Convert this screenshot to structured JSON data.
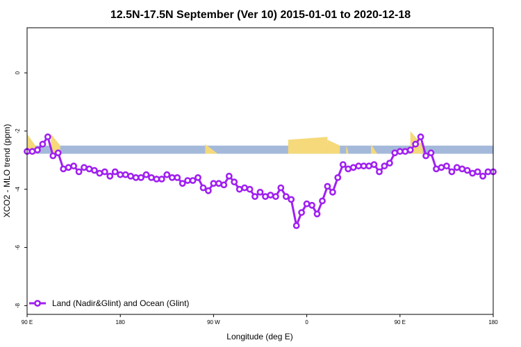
{
  "chart_data": {
    "type": "line",
    "title": "12.5N-17.5N September (Ver 10)   2015-01-01 to 2020-12-18",
    "xlabel": "Longitude (deg E)",
    "ylabel": "XCO2 - MLO trend (ppm)",
    "x_ticks": [
      {
        "value": 90,
        "label": "90 E"
      },
      {
        "value": 180,
        "label": "180"
      },
      {
        "value": 270,
        "label": "90 W"
      },
      {
        "value": 360,
        "label": "0"
      },
      {
        "value": 450,
        "label": "90 E"
      },
      {
        "value": 540,
        "label": "180"
      }
    ],
    "y_ticks": [
      {
        "value": 0,
        "label": "0"
      },
      {
        "value": -2,
        "label": "-2"
      },
      {
        "value": -4,
        "label": "-4"
      },
      {
        "value": -6,
        "label": "-6"
      },
      {
        "value": -8,
        "label": "-8"
      }
    ],
    "xlim": [
      90,
      540
    ],
    "ylim": [
      -8.3,
      1.55
    ],
    "grid": false,
    "band": {
      "y_top": -2.5,
      "y_bottom": -2.78,
      "ocean_color": "#a4b9da",
      "land_color": "#f5d97a",
      "land_segments": [
        {
          "x": [
            90,
            98
          ],
          "top": [
            -2.1,
            -2.5
          ],
          "bottom": [
            -2.78,
            -2.78
          ]
        },
        {
          "x": [
            113,
            122
          ],
          "top": [
            -2.1,
            -2.5
          ],
          "bottom": [
            -2.78,
            -2.78
          ]
        },
        {
          "x": [
            262,
            274
          ],
          "top": [
            -2.45,
            -2.78
          ],
          "bottom": [
            -2.78,
            -2.78
          ]
        },
        {
          "x": [
            342,
            380
          ],
          "top": [
            -2.3,
            -2.2
          ],
          "bottom": [
            -2.78,
            -2.78
          ]
        },
        {
          "x": [
            380,
            392
          ],
          "top": [
            -2.3,
            -2.5
          ],
          "bottom": [
            -2.78,
            -2.78
          ]
        },
        {
          "x": [
            398,
            400
          ],
          "top": [
            -2.5,
            -2.7
          ],
          "bottom": [
            -2.78,
            -2.78
          ]
        },
        {
          "x": [
            422,
            428
          ],
          "top": [
            -2.45,
            -2.78
          ],
          "bottom": [
            -2.78,
            -2.78
          ]
        },
        {
          "x": [
            460,
            472
          ],
          "top": [
            -2.0,
            -2.5
          ],
          "bottom": [
            -2.78,
            -2.78
          ]
        }
      ]
    },
    "series": [
      {
        "name": "Land (Nadir&Glint) and Ocean (Glint)",
        "color": "#a020f0",
        "x": [
          90,
          95,
          100,
          105,
          110,
          115,
          120,
          125,
          130,
          135,
          140,
          145,
          150,
          155,
          160,
          165,
          170,
          175,
          180,
          185,
          190,
          195,
          200,
          205,
          210,
          215,
          220,
          225,
          230,
          235,
          240,
          245,
          250,
          255,
          260,
          265,
          270,
          275,
          280,
          285,
          290,
          295,
          300,
          305,
          310,
          315,
          320,
          325,
          330,
          335,
          340,
          345,
          350,
          355,
          360,
          365,
          370,
          375,
          380,
          385,
          390,
          395,
          400,
          405,
          410,
          415,
          420,
          425,
          430,
          435,
          440,
          445,
          450,
          455,
          460,
          465,
          470,
          475,
          480,
          485,
          490,
          495,
          500,
          505,
          510,
          515,
          520,
          525,
          530,
          535,
          540
        ],
        "values": [
          -2.7,
          -2.7,
          -2.65,
          -2.45,
          -2.2,
          -2.85,
          -2.75,
          -3.3,
          -3.25,
          -3.2,
          -3.4,
          -3.25,
          -3.3,
          -3.35,
          -3.45,
          -3.4,
          -3.55,
          -3.4,
          -3.5,
          -3.5,
          -3.55,
          -3.6,
          -3.6,
          -3.5,
          -3.6,
          -3.65,
          -3.65,
          -3.5,
          -3.6,
          -3.6,
          -3.8,
          -3.7,
          -3.7,
          -3.6,
          -3.95,
          -4.05,
          -3.8,
          -3.8,
          -3.85,
          -3.55,
          -3.75,
          -4.0,
          -3.95,
          -4.0,
          -4.25,
          -4.1,
          -4.25,
          -4.2,
          -4.25,
          -3.95,
          -4.25,
          -4.35,
          -5.25,
          -4.8,
          -4.5,
          -4.55,
          -4.85,
          -4.4,
          -3.9,
          -4.1,
          -3.6,
          -3.15,
          -3.3,
          -3.25,
          -3.2,
          -3.2,
          -3.2,
          -3.15,
          -3.4,
          -3.2,
          -3.1,
          -2.75,
          -2.7,
          -2.7,
          -2.65,
          -2.45,
          -2.2,
          -2.85,
          -2.75,
          -3.3,
          -3.25,
          -3.2,
          -3.4,
          -3.25,
          -3.3,
          -3.35,
          -3.45,
          -3.4,
          -3.55,
          -3.4,
          -3.4
        ]
      }
    ],
    "legend": {
      "placement": "bottom-left"
    }
  }
}
